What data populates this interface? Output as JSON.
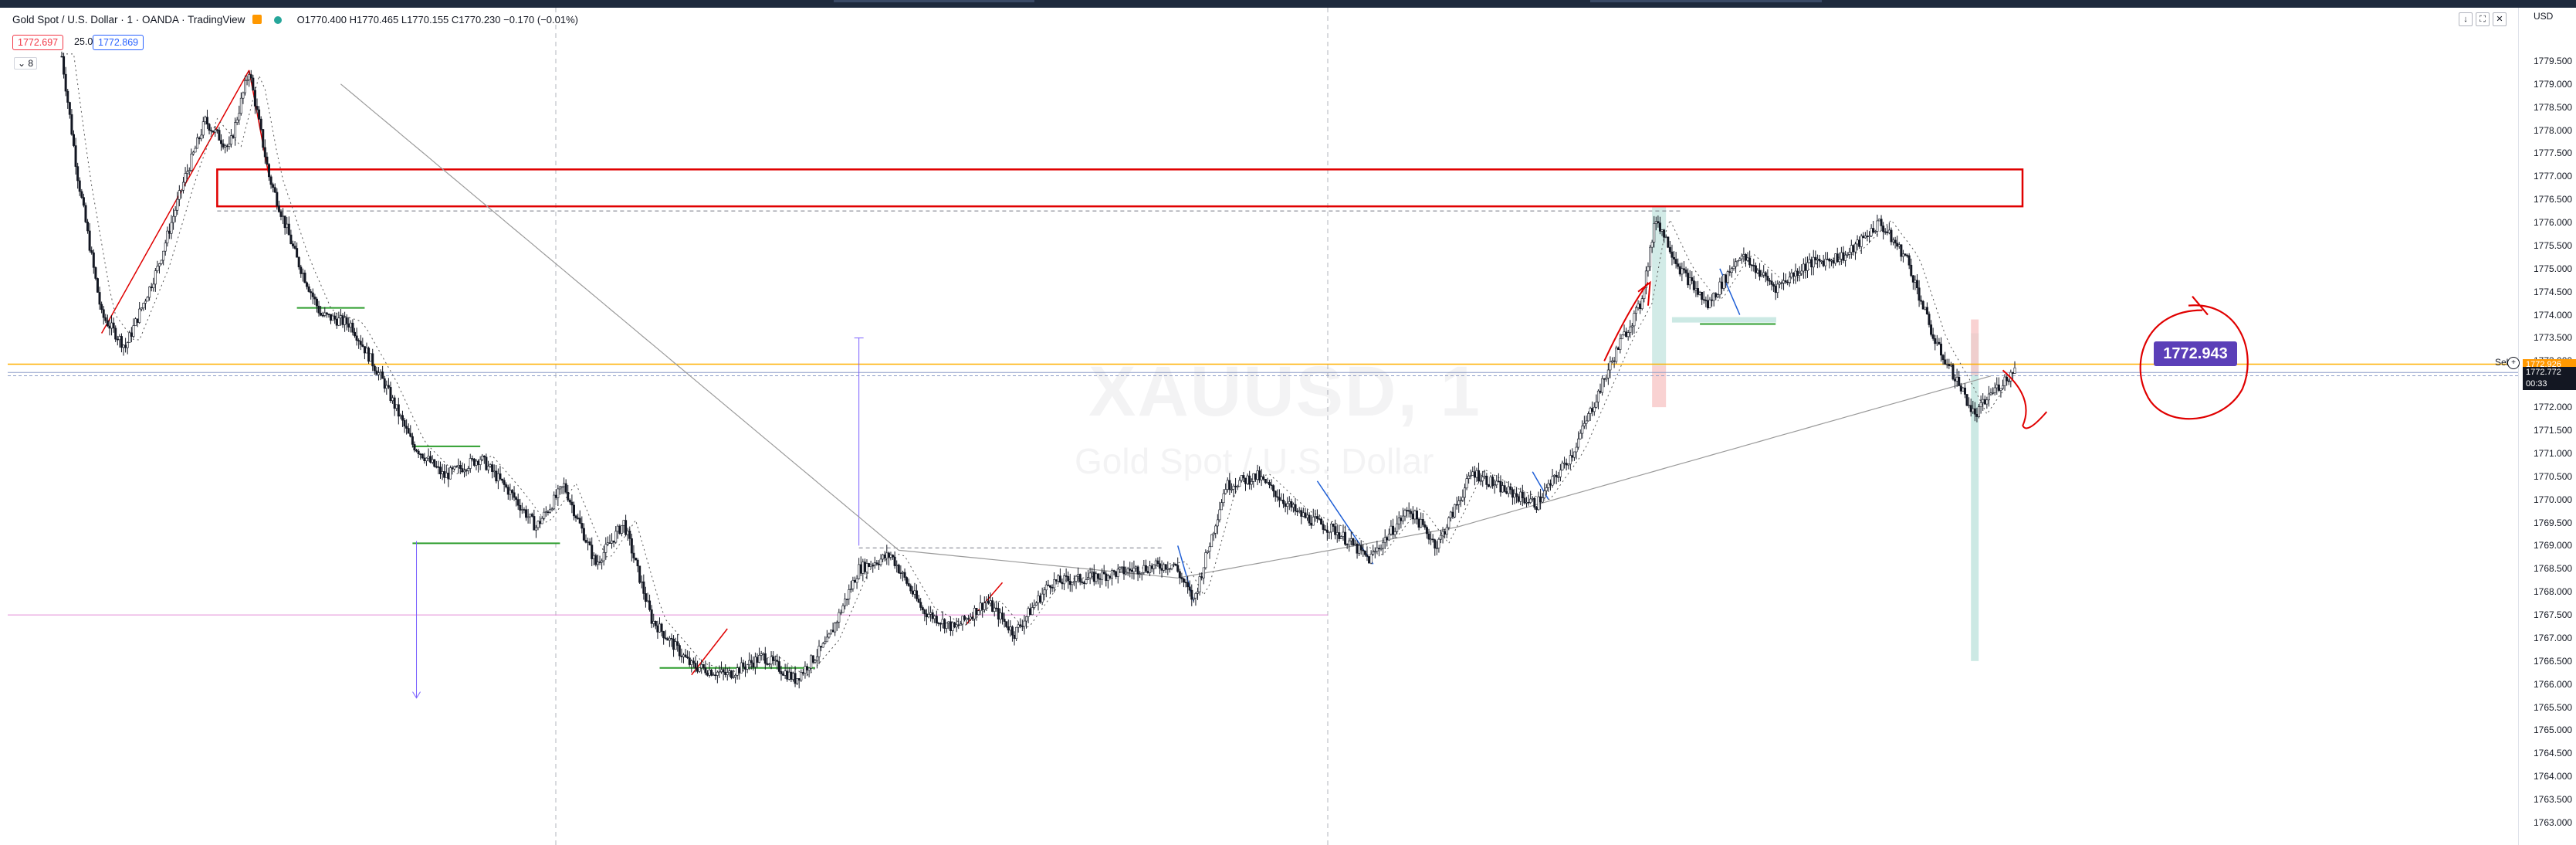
{
  "header": {
    "symbol_title": "Gold Spot / U.S. Dollar · 1 · OANDA · TradingView",
    "ohlc": "O1770.400 H1770.465 L1770.155 C1770.230 −0.170 (−0.01%)",
    "sell_price": "1772.697",
    "quantity": "25.0",
    "buy_price": "1772.869",
    "collapse_label": "8"
  },
  "watermark": {
    "symbol": "XAUUSD, 1",
    "description": "Gold Spot / U.S. Dollar"
  },
  "price_scale": {
    "currency": "USD",
    "ticks": [
      "1779.500",
      "1779.000",
      "1778.500",
      "1778.000",
      "1777.500",
      "1777.000",
      "1776.500",
      "1776.000",
      "1775.500",
      "1775.000",
      "1774.500",
      "1774.000",
      "1773.500",
      "1773.000",
      "1772.500",
      "1772.000",
      "1771.500",
      "1771.000",
      "1770.500",
      "1770.000",
      "1769.500",
      "1769.000",
      "1768.500",
      "1768.000",
      "1767.500",
      "1767.000",
      "1766.500",
      "1766.000",
      "1765.500",
      "1765.000",
      "1764.500",
      "1764.000",
      "1763.500",
      "1763.000"
    ],
    "orange_tag": "1772.926",
    "black_tag_price": "1772.772",
    "black_tag_timer": "00:33",
    "sell_label": "Sell"
  },
  "annotation_badge": "1772.943",
  "colors": {
    "zone_red": "#e00000",
    "trend_red": "#e00000",
    "support_green": "#2e9e2e",
    "trend_blue": "#1f5fd6",
    "measure_purple": "#7b61ff",
    "ma_gray": "#9a9a9a",
    "hline_orange": "#ffb000",
    "hline_pink": "#e48bd6",
    "highlight_teal": "#bfe3dd",
    "highlight_red": "#f7c7c7",
    "badge_purple": "#5b3fb8"
  },
  "chart_data": {
    "type": "candlestick",
    "symbol": "XAUUSD",
    "timeframe": "1",
    "ylim": [
      1763.0,
      1779.9
    ],
    "zone": [
      1776.35,
      1777.15
    ],
    "path": [
      [
        0,
        1779.6
      ],
      [
        8,
        1777.0
      ],
      [
        20,
        1774.0
      ],
      [
        32,
        1773.3
      ],
      [
        48,
        1775.0
      ],
      [
        62,
        1777.0
      ],
      [
        72,
        1778.2
      ],
      [
        84,
        1777.6
      ],
      [
        94,
        1779.3
      ],
      [
        104,
        1777.0
      ],
      [
        118,
        1775.2
      ],
      [
        130,
        1774.0
      ],
      [
        145,
        1773.8
      ],
      [
        162,
        1772.5
      ],
      [
        176,
        1771.2
      ],
      [
        192,
        1770.5
      ],
      [
        210,
        1770.9
      ],
      [
        226,
        1770.1
      ],
      [
        238,
        1769.4
      ],
      [
        252,
        1770.3
      ],
      [
        268,
        1768.6
      ],
      [
        282,
        1769.5
      ],
      [
        296,
        1767.4
      ],
      [
        316,
        1766.4
      ],
      [
        334,
        1766.2
      ],
      [
        352,
        1766.6
      ],
      [
        368,
        1766.1
      ],
      [
        384,
        1766.9
      ],
      [
        400,
        1768.5
      ],
      [
        416,
        1768.8
      ],
      [
        432,
        1767.6
      ],
      [
        448,
        1767.2
      ],
      [
        464,
        1767.8
      ],
      [
        478,
        1767.1
      ],
      [
        496,
        1768.2
      ],
      [
        516,
        1768.3
      ],
      [
        540,
        1768.5
      ],
      [
        558,
        1768.6
      ],
      [
        568,
        1767.8
      ],
      [
        584,
        1770.3
      ],
      [
        600,
        1770.5
      ],
      [
        620,
        1769.7
      ],
      [
        640,
        1769.3
      ],
      [
        656,
        1768.7
      ],
      [
        676,
        1769.8
      ],
      [
        690,
        1769.0
      ],
      [
        708,
        1770.6
      ],
      [
        724,
        1770.2
      ],
      [
        740,
        1769.9
      ],
      [
        758,
        1771.0
      ],
      [
        770,
        1772.2
      ],
      [
        782,
        1773.4
      ],
      [
        792,
        1774.2
      ],
      [
        800,
        1776.1
      ],
      [
        812,
        1775.0
      ],
      [
        826,
        1774.2
      ],
      [
        842,
        1775.3
      ],
      [
        860,
        1774.6
      ],
      [
        876,
        1775.1
      ],
      [
        896,
        1775.3
      ],
      [
        912,
        1776.0
      ],
      [
        926,
        1775.2
      ],
      [
        940,
        1773.4
      ],
      [
        952,
        1772.5
      ],
      [
        960,
        1771.8
      ],
      [
        968,
        1772.3
      ],
      [
        980,
        1772.8
      ]
    ],
    "candles_total": 980
  }
}
